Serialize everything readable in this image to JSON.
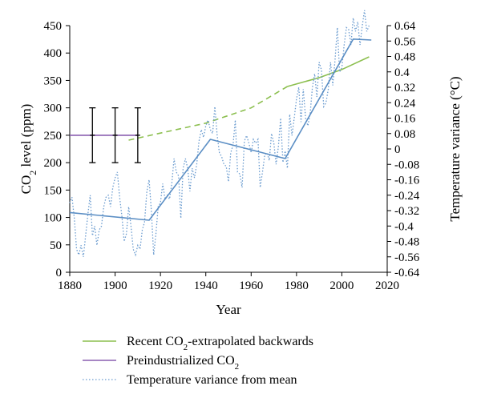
{
  "chart_data": {
    "type": "line",
    "xlabel": "Year",
    "ylabel_left": {
      "main": "CO",
      "sub": "2",
      "rest": " level (ppm)"
    },
    "ylabel_right": "Temperature variance (°C)",
    "xlim": [
      1880,
      2020
    ],
    "ylim_left": [
      0,
      450
    ],
    "ylim_right": [
      -0.64,
      0.64
    ],
    "x_ticks": [
      1880,
      1900,
      1920,
      1940,
      1960,
      1980,
      2000,
      2020
    ],
    "y_left_ticks": [
      0,
      50,
      100,
      150,
      200,
      250,
      300,
      350,
      400,
      450
    ],
    "y_right_ticks": [
      "0.64",
      "0.56",
      "0.48",
      "0.4",
      "0.32",
      "0.24",
      "0.16",
      "0.08",
      "0",
      "-0.08",
      "-0.16",
      "-0.24",
      "-0.32",
      "-0.4",
      "-0.48",
      "-0.56",
      "-0.64"
    ],
    "grid": false,
    "legend_position": "bottom",
    "series": [
      {
        "key": "recent_co2",
        "axis": "left",
        "color": "#8cbf4f",
        "solid": [
          [
            1976,
            339
          ],
          [
            1990,
            355
          ],
          [
            2000,
            370
          ],
          [
            2012,
            393
          ]
        ],
        "dashed": [
          [
            1906,
            241
          ],
          [
            1920,
            254
          ],
          [
            1940,
            272
          ],
          [
            1960,
            300
          ],
          [
            1976,
            339
          ]
        ]
      },
      {
        "key": "preindustrial_co2",
        "axis": "left",
        "color": "#8a5fb0",
        "points": [
          [
            1880,
            250
          ],
          [
            1910,
            250
          ]
        ],
        "error_bars": [
          {
            "x": 1890,
            "y": 250,
            "low": 200,
            "high": 300
          },
          {
            "x": 1900,
            "y": 250,
            "low": 200,
            "high": 300
          },
          {
            "x": 1910,
            "y": 250,
            "low": 200,
            "high": 300
          }
        ],
        "error_bar_color": "#000000"
      },
      {
        "key": "temperature_variance",
        "axis": "right",
        "color": "#6a9bcf",
        "style": "dotted",
        "points": [
          [
            1880,
            -0.28
          ],
          [
            1881,
            -0.25
          ],
          [
            1882,
            -0.36
          ],
          [
            1883,
            -0.52
          ],
          [
            1884,
            -0.55
          ],
          [
            1885,
            -0.5
          ],
          [
            1886,
            -0.56
          ],
          [
            1887,
            -0.45
          ],
          [
            1888,
            -0.34
          ],
          [
            1889,
            -0.24
          ],
          [
            1890,
            -0.45
          ],
          [
            1891,
            -0.4
          ],
          [
            1892,
            -0.5
          ],
          [
            1893,
            -0.42
          ],
          [
            1894,
            -0.4
          ],
          [
            1895,
            -0.3
          ],
          [
            1896,
            -0.25
          ],
          [
            1897,
            -0.24
          ],
          [
            1898,
            -0.3
          ],
          [
            1899,
            -0.2
          ],
          [
            1900,
            -0.15
          ],
          [
            1901,
            -0.12
          ],
          [
            1902,
            -0.25
          ],
          [
            1903,
            -0.35
          ],
          [
            1904,
            -0.48
          ],
          [
            1905,
            -0.44
          ],
          [
            1906,
            -0.3
          ],
          [
            1907,
            -0.4
          ],
          [
            1908,
            -0.52
          ],
          [
            1909,
            -0.55
          ],
          [
            1910,
            -0.5
          ],
          [
            1911,
            -0.52
          ],
          [
            1912,
            -0.42
          ],
          [
            1913,
            -0.38
          ],
          [
            1914,
            -0.22
          ],
          [
            1915,
            -0.16
          ],
          [
            1916,
            -0.32
          ],
          [
            1917,
            -0.55
          ],
          [
            1918,
            -0.44
          ],
          [
            1919,
            -0.3
          ],
          [
            1920,
            -0.28
          ],
          [
            1921,
            -0.18
          ],
          [
            1922,
            -0.26
          ],
          [
            1923,
            -0.24
          ],
          [
            1924,
            -0.26
          ],
          [
            1925,
            -0.18
          ],
          [
            1926,
            -0.05
          ],
          [
            1927,
            -0.12
          ],
          [
            1928,
            -0.14
          ],
          [
            1929,
            -0.36
          ],
          [
            1930,
            -0.1
          ],
          [
            1931,
            -0.05
          ],
          [
            1932,
            -0.1
          ],
          [
            1933,
            -0.22
          ],
          [
            1934,
            -0.1
          ],
          [
            1935,
            -0.15
          ],
          [
            1936,
            -0.08
          ],
          [
            1937,
            0.04
          ],
          [
            1938,
            0.1
          ],
          [
            1939,
            0.06
          ],
          [
            1940,
            0.12
          ],
          [
            1941,
            0.15
          ],
          [
            1942,
            0.1
          ],
          [
            1943,
            0.08
          ],
          [
            1944,
            0.22
          ],
          [
            1945,
            0.07
          ],
          [
            1946,
            -0.02
          ],
          [
            1947,
            -0.04
          ],
          [
            1948,
            -0.08
          ],
          [
            1949,
            -0.09
          ],
          [
            1950,
            -0.17
          ],
          [
            1951,
            -0.02
          ],
          [
            1952,
            0.02
          ],
          [
            1953,
            0.15
          ],
          [
            1954,
            -0.12
          ],
          [
            1955,
            -0.13
          ],
          [
            1956,
            -0.2
          ],
          [
            1957,
            0.04
          ],
          [
            1958,
            0.07
          ],
          [
            1959,
            0.03
          ],
          [
            1960,
            -0.02
          ],
          [
            1961,
            0.05
          ],
          [
            1962,
            0.03
          ],
          [
            1963,
            0.05
          ],
          [
            1964,
            -0.2
          ],
          [
            1965,
            -0.12
          ],
          [
            1966,
            -0.03
          ],
          [
            1967,
            -0.02
          ],
          [
            1968,
            -0.06
          ],
          [
            1969,
            0.08
          ],
          [
            1970,
            0.03
          ],
          [
            1971,
            -0.08
          ],
          [
            1972,
            0.01
          ],
          [
            1973,
            0.16
          ],
          [
            1974,
            -0.07
          ],
          [
            1975,
            -0.01
          ],
          [
            1976,
            -0.1
          ],
          [
            1977,
            0.18
          ],
          [
            1978,
            0.07
          ],
          [
            1979,
            0.16
          ],
          [
            1980,
            0.26
          ],
          [
            1981,
            0.32
          ],
          [
            1982,
            0.14
          ],
          [
            1983,
            0.31
          ],
          [
            1984,
            0.16
          ],
          [
            1985,
            0.12
          ],
          [
            1986,
            0.18
          ],
          [
            1987,
            0.32
          ],
          [
            1988,
            0.39
          ],
          [
            1989,
            0.27
          ],
          [
            1990,
            0.45
          ],
          [
            1991,
            0.41
          ],
          [
            1992,
            0.22
          ],
          [
            1993,
            0.24
          ],
          [
            1994,
            0.31
          ],
          [
            1995,
            0.45
          ],
          [
            1996,
            0.33
          ],
          [
            1997,
            0.46
          ],
          [
            1998,
            0.63
          ],
          [
            1999,
            0.4
          ],
          [
            2000,
            0.42
          ],
          [
            2001,
            0.54
          ],
          [
            2002,
            0.63
          ],
          [
            2003,
            0.62
          ],
          [
            2004,
            0.54
          ],
          [
            2005,
            0.68
          ],
          [
            2006,
            0.61
          ],
          [
            2007,
            0.66
          ],
          [
            2008,
            0.54
          ],
          [
            2009,
            0.64
          ],
          [
            2010,
            0.72
          ],
          [
            2011,
            0.61
          ],
          [
            2012,
            0.64
          ]
        ]
      },
      {
        "key": "temperature_trend",
        "axis": "right",
        "color": "#5b8ec4",
        "points": [
          [
            1880,
            -0.33
          ],
          [
            1915,
            -0.37
          ],
          [
            1942,
            0.05
          ],
          [
            1975,
            -0.05
          ],
          [
            2005,
            0.57
          ],
          [
            2013,
            0.565
          ]
        ]
      }
    ],
    "legend": [
      {
        "series_key": "recent_co2",
        "text": "Recent CO",
        "sub": "2",
        "rest": "-extrapolated backwards"
      },
      {
        "series_key": "preindustrial_co2",
        "text": "Preindustrialized CO",
        "sub": "2",
        "rest": ""
      },
      {
        "series_key": "temperature_variance",
        "text": "Temperature variance from mean",
        "sub": "",
        "rest": ""
      }
    ]
  }
}
